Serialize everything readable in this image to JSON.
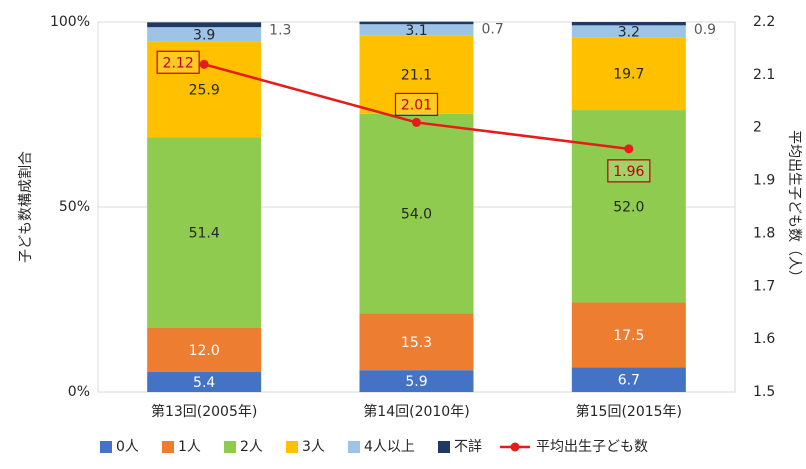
{
  "chart_data": {
    "type": "bar",
    "stacked": true,
    "categories": [
      "第13回(2005年)",
      "第14回(2010年)",
      "第15回(2015年)"
    ],
    "series": [
      {
        "name": "0人",
        "color": "#4472C4",
        "values": [
          5.4,
          5.9,
          6.7
        ],
        "labels": [
          "5.4",
          "5.9",
          "6.7"
        ]
      },
      {
        "name": "1人",
        "color": "#ED7D31",
        "values": [
          12.0,
          15.3,
          17.5
        ],
        "labels": [
          "12.0",
          "15.3",
          "17.5"
        ]
      },
      {
        "name": "2人",
        "color": "#8FCB4F",
        "values": [
          51.4,
          54.0,
          52.0
        ],
        "labels": [
          "51.4",
          "54.0",
          "52.0"
        ]
      },
      {
        "name": "3人",
        "color": "#FFC000",
        "values": [
          25.9,
          21.1,
          19.7
        ],
        "labels": [
          "25.9",
          "21.1",
          "19.7"
        ]
      },
      {
        "name": "4人以上",
        "color": "#9DC3E6",
        "values": [
          3.9,
          3.1,
          3.2
        ],
        "labels": [
          "3.9",
          "3.1",
          "3.2"
        ]
      },
      {
        "name": "不詳",
        "color": "#203864",
        "values": [
          1.3,
          0.7,
          0.9
        ],
        "labels": [
          "1.3",
          "0.7",
          "0.9"
        ]
      }
    ],
    "line_series": {
      "name": "平均出生子ども数",
      "color": "#E81B1B",
      "axis": "right",
      "values": [
        2.12,
        2.01,
        1.96
      ],
      "labels": [
        "2.12",
        "2.01",
        "1.96"
      ]
    },
    "ylabel": "子ども数構成割合",
    "y2label": "平均出生子ども数（人）",
    "ylim": [
      0,
      100
    ],
    "y2lim": [
      1.5,
      2.2
    ],
    "yticks": [
      "0%",
      "50%",
      "100%"
    ],
    "y2ticks": [
      "1.5",
      "1.6",
      "1.7",
      "1.8",
      "1.9",
      "2",
      "2.1",
      "2.2"
    ],
    "grid": true,
    "legend_position": "bottom"
  }
}
